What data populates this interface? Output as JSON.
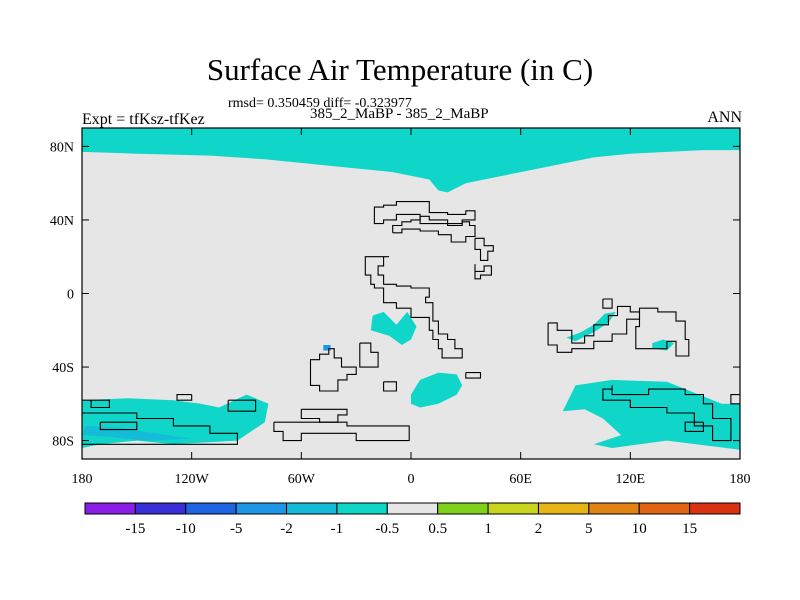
{
  "header": {
    "title": "Surface Air Temperature (in C)",
    "stats": "rmsd= 0.350459 diff= -0.323977",
    "expt": "Expt = tfKsz-tfKez",
    "subtitle": "385_2_MaBP - 385_2_MaBP",
    "season": "ANN"
  },
  "chart_data": {
    "type": "heatmap",
    "title": "Surface Air Temperature (in C)",
    "xlabel": "",
    "ylabel": "",
    "xlim": [
      -180,
      180
    ],
    "ylim": [
      -90,
      90
    ],
    "x_ticks": [
      {
        "value": -180,
        "label": "180"
      },
      {
        "value": -120,
        "label": "120W"
      },
      {
        "value": -60,
        "label": "60W"
      },
      {
        "value": 0,
        "label": "0"
      },
      {
        "value": 60,
        "label": "60E"
      },
      {
        "value": 120,
        "label": "120E"
      },
      {
        "value": 180,
        "label": "180"
      }
    ],
    "y_ticks": [
      {
        "value": 80,
        "label": "80N"
      },
      {
        "value": 40,
        "label": "40N"
      },
      {
        "value": 0,
        "label": "0"
      },
      {
        "value": -40,
        "label": "40S"
      },
      {
        "value": -80,
        "label": "80S"
      }
    ],
    "colorbar": {
      "labels": [
        "-15",
        "-10",
        "-5",
        "-2",
        "-1",
        "-0.5",
        "0.5",
        "1",
        "2",
        "5",
        "10",
        "15"
      ],
      "colors": [
        "#8a1ee8",
        "#3a2ed8",
        "#1e64e0",
        "#1e96e6",
        "#14bcd8",
        "#0fd6c8",
        "#e6e6e6",
        "#7ed21e",
        "#c8d41e",
        "#e6b414",
        "#e08214",
        "#e06414",
        "#dc3214"
      ]
    },
    "background_color": "#e6e6e6",
    "regions": [
      {
        "name": "north-polar-cyan",
        "value_range": "-1 to -0.5",
        "color": "#0fd6c8",
        "polygon": [
          [
            -180,
            90
          ],
          [
            180,
            90
          ],
          [
            180,
            78
          ],
          [
            160,
            78
          ],
          [
            140,
            77
          ],
          [
            120,
            76
          ],
          [
            100,
            74
          ],
          [
            80,
            70
          ],
          [
            60,
            66
          ],
          [
            40,
            62
          ],
          [
            30,
            60
          ],
          [
            20,
            55
          ],
          [
            15,
            56
          ],
          [
            10,
            62
          ],
          [
            -10,
            66
          ],
          [
            -40,
            69
          ],
          [
            -80,
            73
          ],
          [
            -110,
            75
          ],
          [
            -150,
            76
          ],
          [
            -180,
            77
          ]
        ]
      },
      {
        "name": "south-africa-cyan",
        "value_range": "-1 to -0.5",
        "color": "#0fd6c8",
        "polygon": [
          [
            0,
            -55
          ],
          [
            5,
            -47
          ],
          [
            15,
            -43
          ],
          [
            25,
            -44
          ],
          [
            28,
            -50
          ],
          [
            25,
            -55
          ],
          [
            15,
            -60
          ],
          [
            5,
            -62
          ],
          [
            0,
            -60
          ]
        ]
      },
      {
        "name": "atlantic-cyan",
        "value_range": "-1 to -0.5",
        "color": "#0fd6c8",
        "polygon": [
          [
            -21,
            -12
          ],
          [
            -15,
            -10
          ],
          [
            -8,
            -17
          ],
          [
            -2,
            -10
          ],
          [
            3,
            -18
          ],
          [
            0,
            -25
          ],
          [
            -5,
            -28
          ],
          [
            -12,
            -23
          ],
          [
            -22,
            -20
          ]
        ]
      },
      {
        "name": "indian-ocean-cyan",
        "value_range": "-1 to -0.5",
        "color": "#0fd6c8",
        "polygon": [
          [
            85,
            -24
          ],
          [
            93,
            -21
          ],
          [
            100,
            -17
          ],
          [
            106,
            -11
          ],
          [
            112,
            -10
          ],
          [
            108,
            -16
          ],
          [
            100,
            -21
          ],
          [
            90,
            -26
          ]
        ]
      },
      {
        "name": "west-pacific-cyan",
        "value_range": "-1 to -0.5",
        "color": "#0fd6c8",
        "polygon": [
          [
            132,
            -27
          ],
          [
            138,
            -25
          ],
          [
            144,
            -27
          ],
          [
            140,
            -31
          ],
          [
            132,
            -30
          ]
        ]
      },
      {
        "name": "south-indian-cyan",
        "value_range": "-1 to -0.5",
        "color": "#0fd6c8",
        "polygon": [
          [
            83,
            -64
          ],
          [
            90,
            -50
          ],
          [
            110,
            -47
          ],
          [
            140,
            -48
          ],
          [
            155,
            -54
          ],
          [
            170,
            -60
          ],
          [
            180,
            -60
          ],
          [
            180,
            -85
          ],
          [
            140,
            -80
          ],
          [
            110,
            -84
          ],
          [
            100,
            -82
          ],
          [
            115,
            -77
          ],
          [
            105,
            -68
          ],
          [
            95,
            -63
          ]
        ]
      },
      {
        "name": "south-pacific-cyan",
        "value_range": "-1 to -0.5",
        "color": "#0fd6c8",
        "polygon": [
          [
            -180,
            -58
          ],
          [
            -155,
            -57
          ],
          [
            -130,
            -58
          ],
          [
            -115,
            -60
          ],
          [
            -105,
            -62
          ],
          [
            -90,
            -55
          ],
          [
            -78,
            -60
          ],
          [
            -80,
            -70
          ],
          [
            -95,
            -80
          ],
          [
            -130,
            -82
          ],
          [
            -150,
            -80
          ],
          [
            -170,
            -82
          ],
          [
            -180,
            -84
          ]
        ]
      },
      {
        "name": "south-pacific-blue",
        "value_range": "-2 to -1",
        "color": "#14bcd8",
        "polygon": [
          [
            -178,
            -72
          ],
          [
            -160,
            -73
          ],
          [
            -140,
            -76
          ],
          [
            -120,
            -79
          ],
          [
            -145,
            -80
          ],
          [
            -165,
            -78
          ],
          [
            -180,
            -77
          ]
        ]
      },
      {
        "name": "small-atlantic-patch",
        "value_range": "-2 to -1",
        "color": "#1e96e6",
        "polygon": [
          [
            -48,
            -28
          ],
          [
            -44,
            -28
          ],
          [
            -44,
            -31
          ],
          [
            -48,
            -31
          ]
        ]
      }
    ]
  }
}
